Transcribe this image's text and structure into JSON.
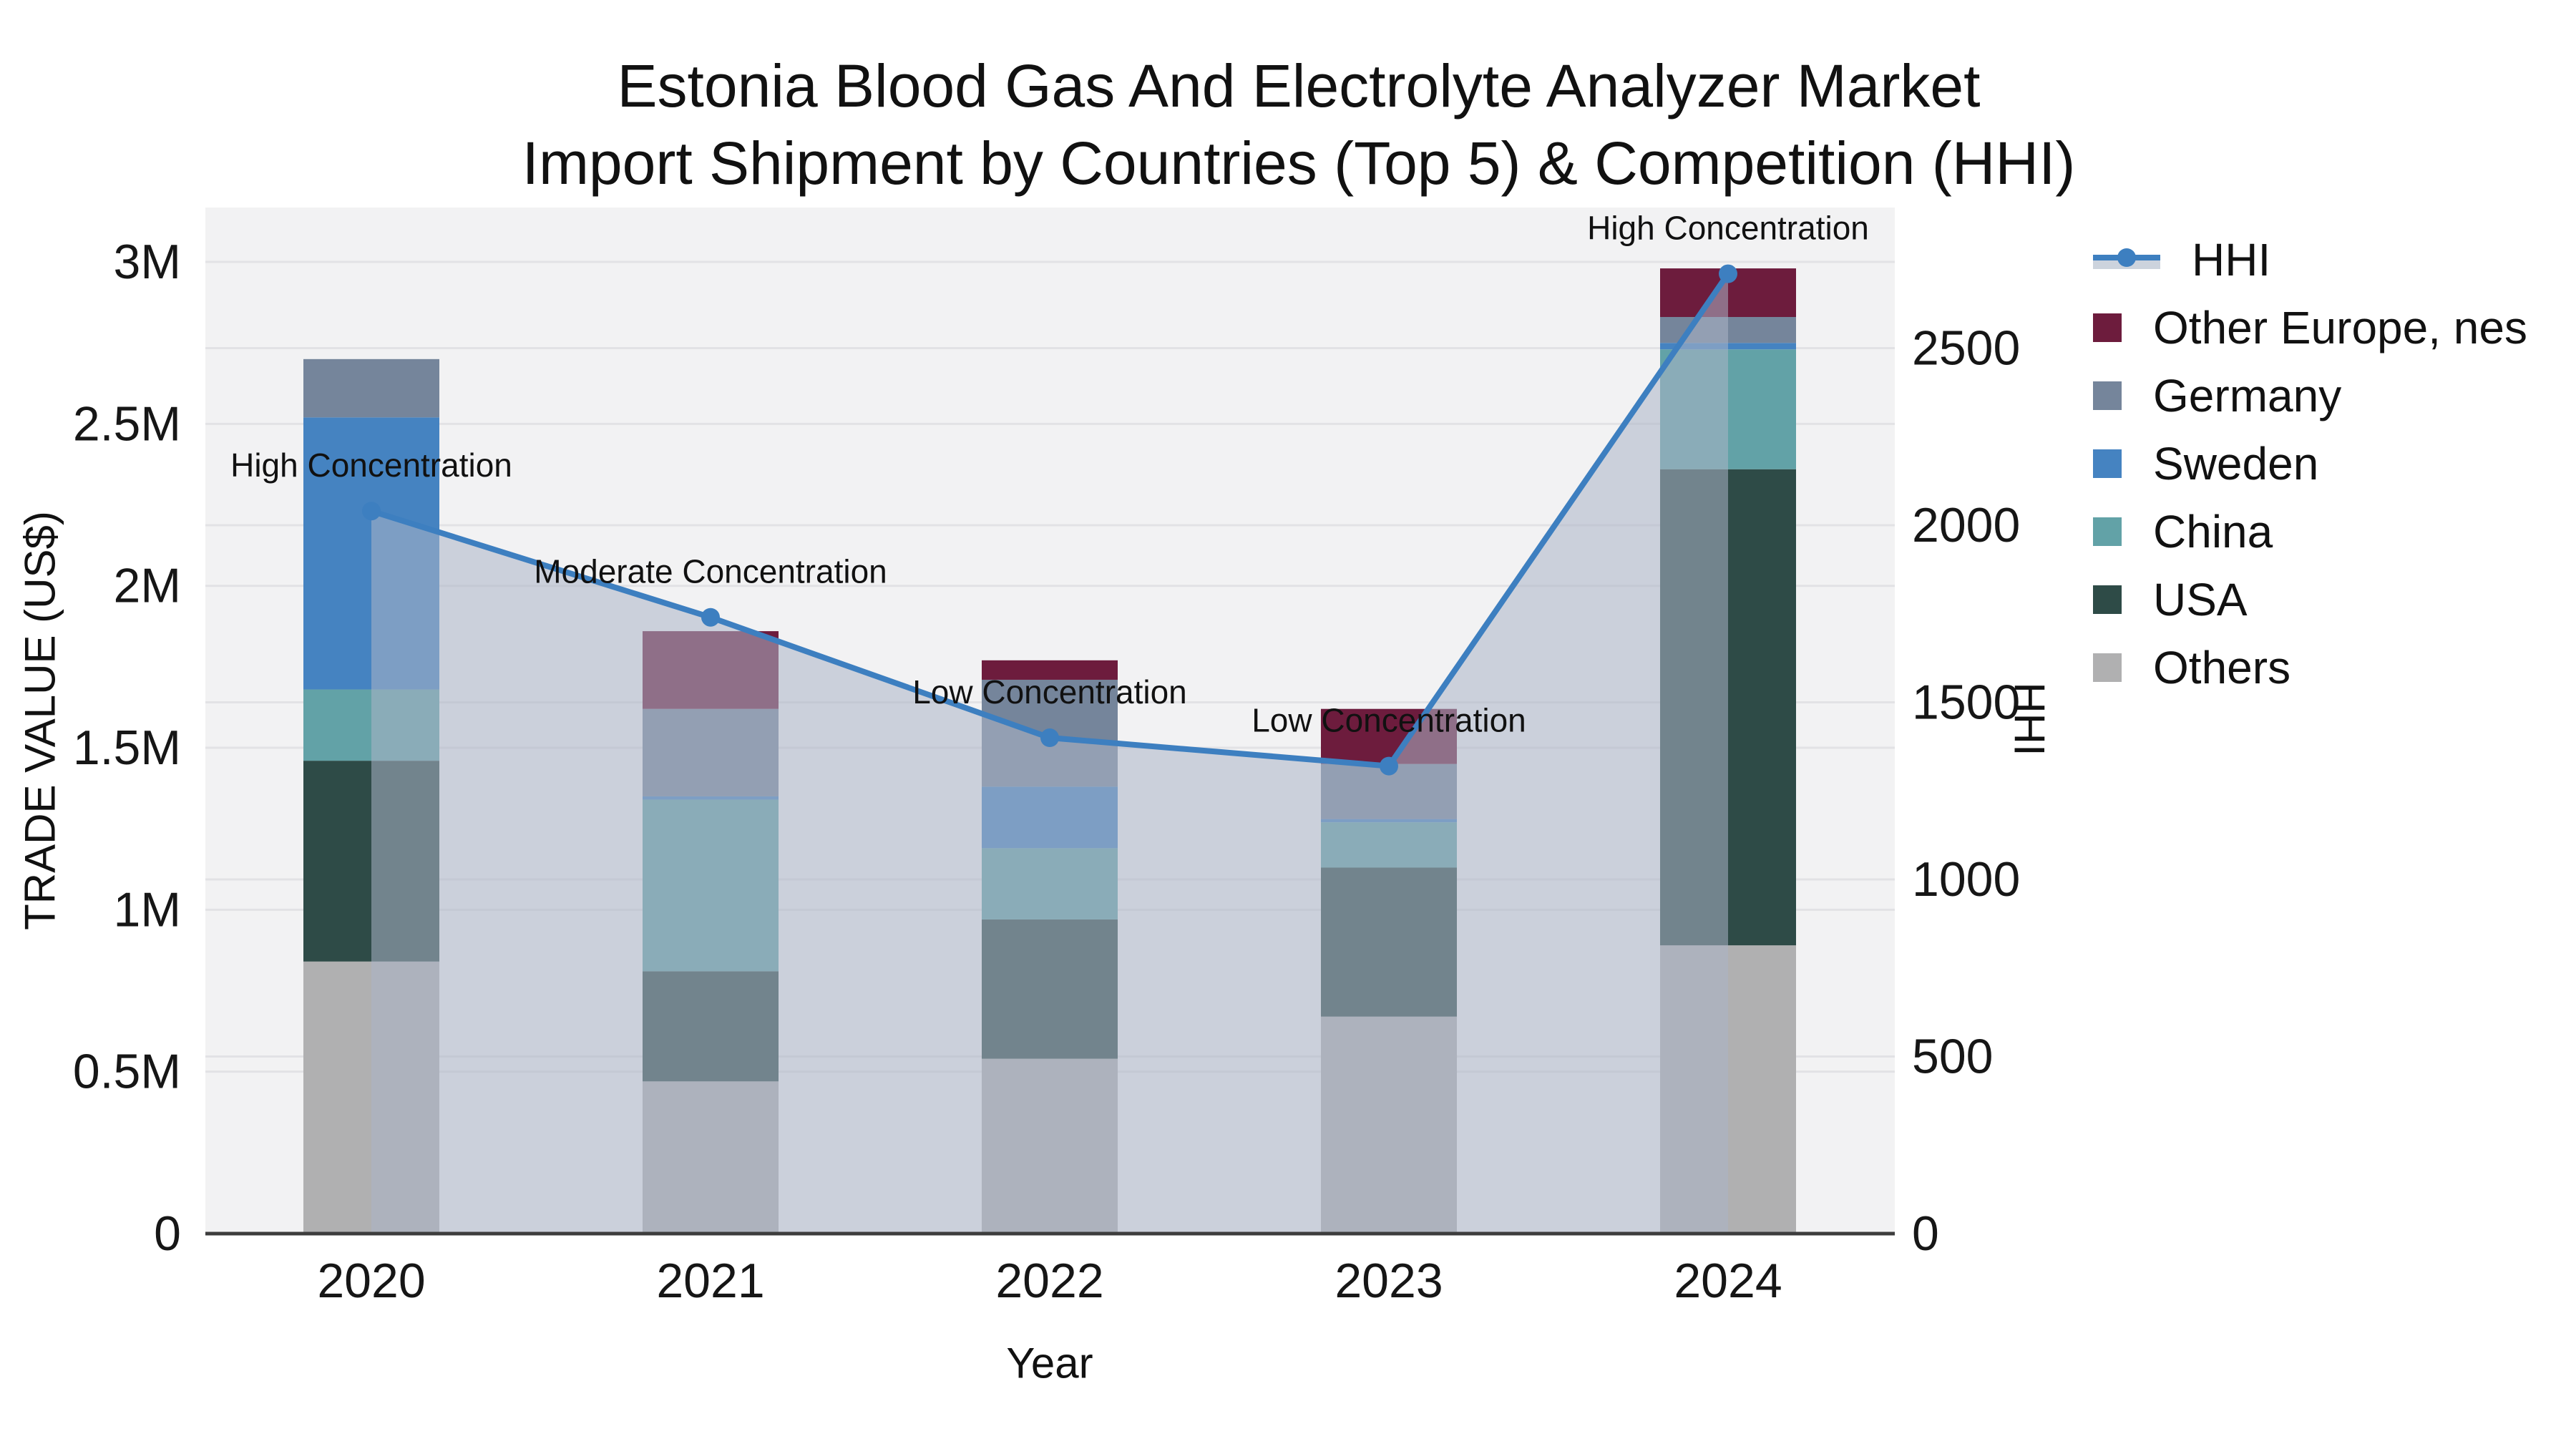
{
  "chart_data": {
    "type": "bar",
    "title_line1": "Estonia Blood Gas And Electrolyte Analyzer Market",
    "title_line2": "Import Shipment by Countries (Top 5) & Competition (HHI)",
    "xlabel": "Year",
    "ylabel": "TRADE VALUE (US$)",
    "y2label": "HHI",
    "categories": [
      "2020",
      "2021",
      "2022",
      "2023",
      "2024"
    ],
    "stack_unit": "millions US$",
    "series": [
      {
        "name": "Others",
        "color": "#b0b0b1",
        "values": [
          0.84,
          0.47,
          0.54,
          0.67,
          0.89
        ]
      },
      {
        "name": "USA",
        "color": "#2e4b47",
        "values": [
          0.62,
          0.34,
          0.43,
          0.46,
          1.47
        ]
      },
      {
        "name": "China",
        "color": "#62a2a7",
        "values": [
          0.22,
          0.53,
          0.22,
          0.14,
          0.37
        ]
      },
      {
        "name": "Sweden",
        "color": "#4583c1",
        "values": [
          0.84,
          0.01,
          0.19,
          0.01,
          0.02
        ]
      },
      {
        "name": "Germany",
        "color": "#75859b",
        "values": [
          0.18,
          0.27,
          0.33,
          0.17,
          0.08
        ]
      },
      {
        "name": "Other Europe, nes",
        "color": "#6d1c3d",
        "values": [
          0.0,
          0.24,
          0.06,
          0.17,
          0.15
        ]
      }
    ],
    "hhi": {
      "name": "HHI",
      "color": "#3d7fc0",
      "area_fill": "rgba(171,181,199,0.55)",
      "values": [
        2040,
        1740,
        1400,
        1320,
        2710
      ]
    },
    "annotations": [
      "High Concentration",
      "Moderate Concentration",
      "Low Concentration",
      "Low Concentration",
      "High Concentration"
    ],
    "yticks": [
      "0",
      "0.5M",
      "1M",
      "1.5M",
      "2M",
      "2.5M",
      "3M"
    ],
    "ytick_values": [
      0,
      0.5,
      1,
      1.5,
      2,
      2.5,
      3
    ],
    "y2ticks": [
      "0",
      "500",
      "1000",
      "1500",
      "2000",
      "2500"
    ],
    "y2tick_values": [
      0,
      500,
      1000,
      1500,
      2000,
      2500
    ],
    "ylim": [
      0,
      3.168
    ],
    "y2lim": [
      0,
      2897
    ],
    "grid": true,
    "legend_position": "right",
    "legend_order": [
      "HHI",
      "Other Europe, nes",
      "Germany",
      "Sweden",
      "China",
      "USA",
      "Others"
    ]
  }
}
